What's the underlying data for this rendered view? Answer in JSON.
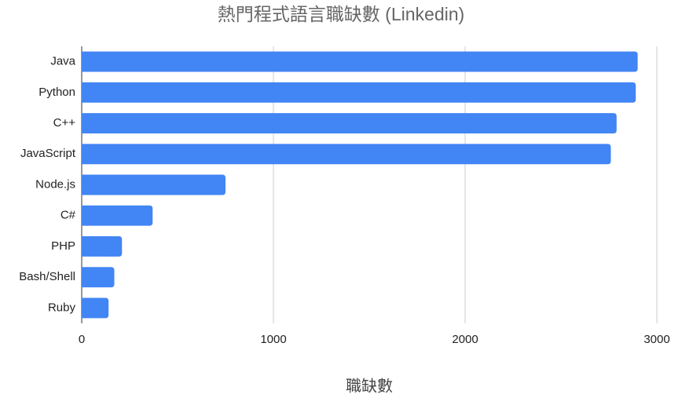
{
  "chart_data": {
    "type": "bar",
    "orientation": "horizontal",
    "title": "熱門程式語言職缺數 (Linkedin)",
    "x_label": "職缺數",
    "categories": [
      "Java",
      "Python",
      "C++",
      "JavaScript",
      "Node.js",
      "C#",
      "PHP",
      "Bash/Shell",
      "Ruby"
    ],
    "values": [
      2900,
      2890,
      2790,
      2760,
      750,
      370,
      210,
      170,
      140
    ],
    "color": "#4285f4",
    "xlim": [
      0,
      3000
    ],
    "xticks": [
      0,
      1000,
      2000,
      3000
    ],
    "grid": true
  }
}
